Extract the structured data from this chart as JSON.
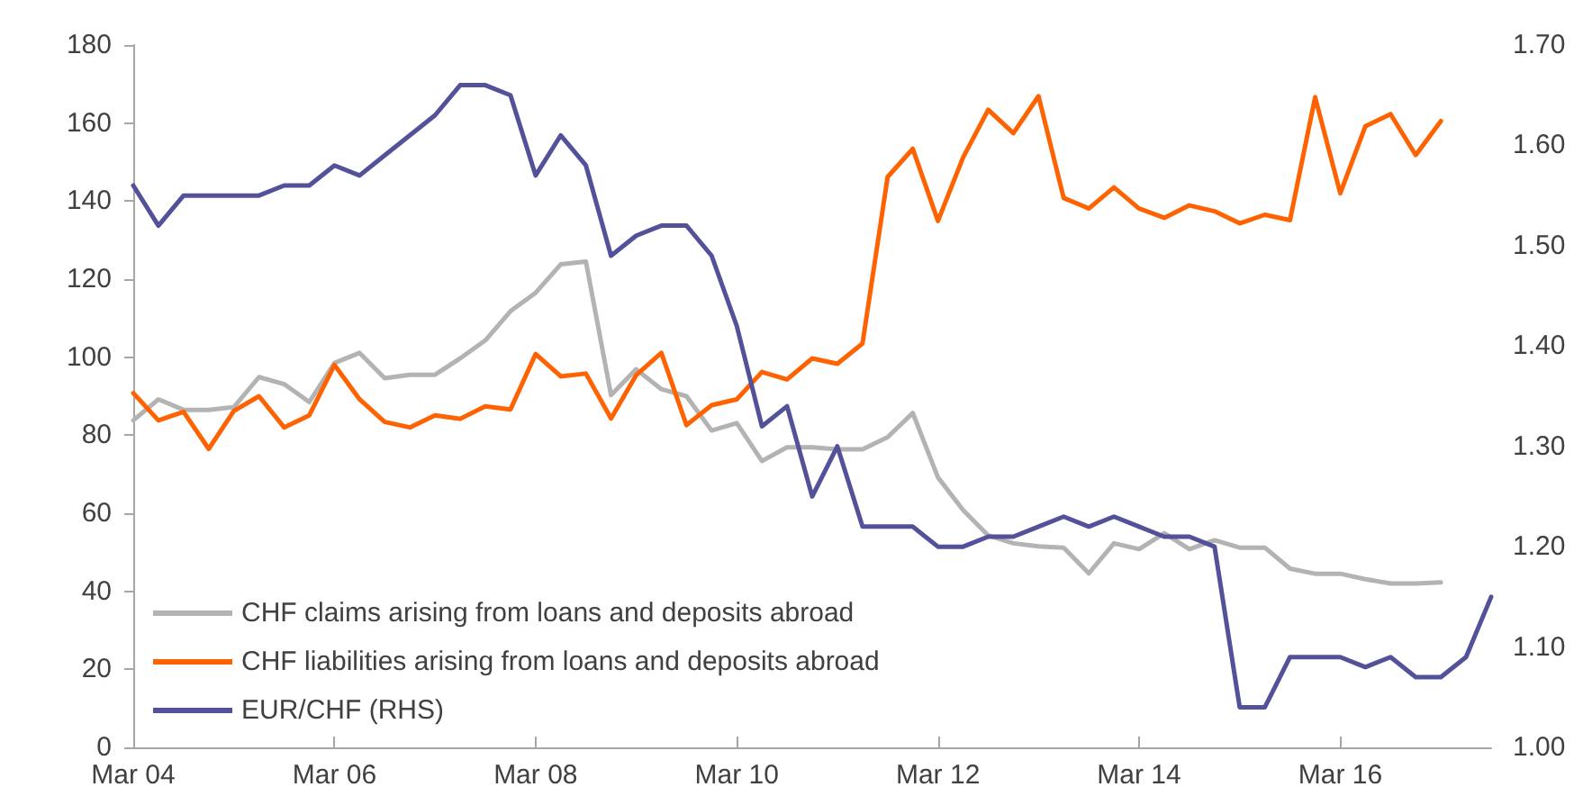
{
  "chart_data": {
    "type": "line",
    "categories": [
      "Mar 04",
      null,
      null,
      null,
      null,
      null,
      null,
      null,
      "Mar 06",
      null,
      null,
      null,
      null,
      null,
      null,
      null,
      "Mar 08",
      null,
      null,
      null,
      null,
      null,
      null,
      null,
      "Mar 10",
      null,
      null,
      null,
      null,
      null,
      null,
      null,
      "Mar 12",
      null,
      null,
      null,
      null,
      null,
      null,
      null,
      "Mar 14",
      null,
      null,
      null,
      null,
      null,
      null,
      null,
      "Mar 16",
      null,
      null,
      null,
      null,
      null,
      null
    ],
    "series": [
      {
        "name": "CHF claims arising from loans and deposits abroad",
        "color": "#b3b3b3",
        "values": [
          83.8,
          89.2,
          86.5,
          86.5,
          87.2,
          94.9,
          93.1,
          88.5,
          98.5,
          101.1,
          94.6,
          95.5,
          95.5,
          99.7,
          104.3,
          111.8,
          116.5,
          123.8,
          124.5,
          90.3,
          96.9,
          91.8,
          90.0,
          81.2,
          83.1,
          73.4,
          76.9,
          76.9,
          76.4,
          76.4,
          79.5,
          85.7,
          69.2,
          60.8,
          54.3,
          52.3,
          51.5,
          51.2,
          44.6,
          52.3,
          50.8,
          54.9,
          50.8,
          53.1,
          51.2,
          51.2,
          45.8,
          44.5,
          44.5,
          43.1,
          42.0,
          42.0,
          42.3,
          null,
          null
        ]
      },
      {
        "name": "CHF liabilities arising from loans and deposits abroad",
        "color": "#ff6200",
        "values": [
          90.8,
          83.8,
          86.0,
          76.5,
          86.2,
          90.0,
          82.0,
          85.1,
          98.0,
          89.2,
          83.4,
          82.0,
          85.1,
          84.2,
          87.4,
          86.6,
          100.8,
          95.1,
          95.8,
          84.3,
          95.4,
          101.1,
          82.6,
          87.7,
          89.2,
          96.2,
          94.3,
          99.7,
          98.3,
          103.5,
          146.2,
          153.4,
          134.9,
          151.2,
          163.4,
          157.4,
          166.9,
          140.8,
          138.1,
          143.5,
          138.1,
          135.7,
          138.9,
          137.4,
          134.3,
          136.5,
          135.1,
          166.6,
          142.0,
          159.2,
          162.3,
          151.8,
          160.5,
          null,
          null
        ]
      },
      {
        "name": "EUR/CHF (RHS)",
        "color": "#525199",
        "axis": "y2",
        "values": [
          1.56,
          1.52,
          1.55,
          1.55,
          1.55,
          1.55,
          1.56,
          1.56,
          1.58,
          1.57,
          1.59,
          1.61,
          1.63,
          1.66,
          1.66,
          1.65,
          1.57,
          1.61,
          1.58,
          1.49,
          1.51,
          1.52,
          1.52,
          1.49,
          1.42,
          1.32,
          1.34,
          1.25,
          1.3,
          1.22,
          1.22,
          1.22,
          1.2,
          1.2,
          1.21,
          1.21,
          1.22,
          1.23,
          1.22,
          1.23,
          1.22,
          1.21,
          1.21,
          1.2,
          1.04,
          1.04,
          1.09,
          1.09,
          1.09,
          1.08,
          1.09,
          1.07,
          1.07,
          1.09,
          1.15
        ]
      }
    ],
    "ylim": [
      0,
      180
    ],
    "yticks": [
      0,
      20,
      40,
      60,
      80,
      100,
      120,
      140,
      160,
      180
    ],
    "y2lim": [
      1.0,
      1.7
    ],
    "y2ticks": [
      {
        "value": 1.0,
        "label": "1.00"
      },
      {
        "value": 1.1,
        "label": "1.10"
      },
      {
        "value": 1.2,
        "label": "1.20"
      },
      {
        "value": 1.3,
        "label": "1.30"
      },
      {
        "value": 1.4,
        "label": "1.40"
      },
      {
        "value": 1.5,
        "label": "1.50"
      },
      {
        "value": 1.6,
        "label": "1.60"
      },
      {
        "value": 1.7,
        "label": "1.70"
      }
    ],
    "legend": "bottom left",
    "grid": false,
    "marker": "none",
    "line_style": "solid"
  }
}
